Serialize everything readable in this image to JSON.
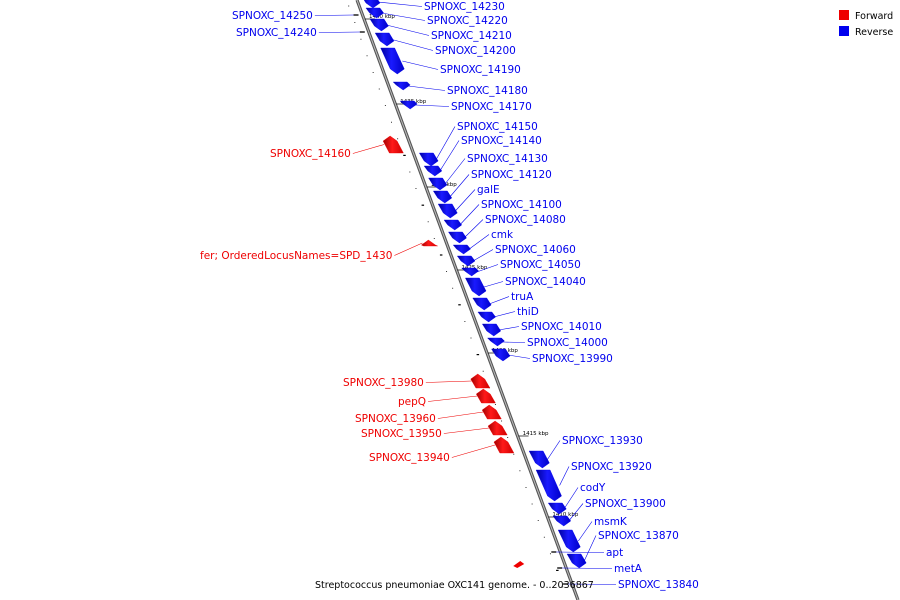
{
  "caption": "Streptococcus pneumoniae OXC141 genome. - 0..2036867",
  "legend": [
    {
      "name": "Forward",
      "color": "#ee0000"
    },
    {
      "name": "Reverse",
      "color": "#0000ee"
    }
  ],
  "colors": {
    "forward": "#ee0000",
    "reverse": "#0000ee",
    "backbone": "#808080"
  },
  "ticks": [
    "1440 kbp",
    "1435 kbp",
    "1430 kbp",
    "1425 kbp",
    "1420 kbp",
    "1415 kbp",
    "1410 kbp"
  ],
  "genes": [
    {
      "label": "SPNOXC_14250",
      "strand": "reverse",
      "feature": false
    },
    {
      "label": "SPNOXC_14240",
      "strand": "reverse",
      "feature": false
    },
    {
      "label": "SPNOXC_14230",
      "strand": "reverse",
      "feature": true
    },
    {
      "label": "SPNOXC_14220",
      "strand": "reverse",
      "feature": true
    },
    {
      "label": "SPNOXC_14210",
      "strand": "reverse",
      "feature": true
    },
    {
      "label": "SPNOXC_14200",
      "strand": "reverse",
      "feature": true
    },
    {
      "label": "SPNOXC_14190",
      "strand": "reverse",
      "feature": true
    },
    {
      "label": "SPNOXC_14180",
      "strand": "reverse",
      "feature": true
    },
    {
      "label": "SPNOXC_14170",
      "strand": "reverse",
      "feature": true
    },
    {
      "label": "SPNOXC_14160",
      "strand": "forward",
      "feature": true
    },
    {
      "label": "SPNOXC_14150",
      "strand": "reverse",
      "feature": true
    },
    {
      "label": "SPNOXC_14140",
      "strand": "reverse",
      "feature": true
    },
    {
      "label": "SPNOXC_14130",
      "strand": "reverse",
      "feature": true
    },
    {
      "label": "SPNOXC_14120",
      "strand": "reverse",
      "feature": true
    },
    {
      "label": "galE",
      "strand": "reverse",
      "feature": true
    },
    {
      "label": "SPNOXC_14100",
      "strand": "reverse",
      "feature": true
    },
    {
      "label": "SPNOXC_14080",
      "strand": "reverse",
      "feature": true
    },
    {
      "label": "cmk",
      "strand": "reverse",
      "feature": true
    },
    {
      "label": "fer; OrderedLocusNames=SPD_1430",
      "strand": "forward",
      "feature": true
    },
    {
      "label": "SPNOXC_14060",
      "strand": "reverse",
      "feature": true
    },
    {
      "label": "SPNOXC_14050",
      "strand": "reverse",
      "feature": true
    },
    {
      "label": "SPNOXC_14040",
      "strand": "reverse",
      "feature": true
    },
    {
      "label": "truA",
      "strand": "reverse",
      "feature": true
    },
    {
      "label": "thiD",
      "strand": "reverse",
      "feature": true
    },
    {
      "label": "SPNOXC_14010",
      "strand": "reverse",
      "feature": true
    },
    {
      "label": "SPNOXC_14000",
      "strand": "reverse",
      "feature": true
    },
    {
      "label": "SPNOXC_13990",
      "strand": "reverse",
      "feature": true
    },
    {
      "label": "SPNOXC_13980",
      "strand": "forward",
      "feature": true
    },
    {
      "label": "pepQ",
      "strand": "forward",
      "feature": true
    },
    {
      "label": "SPNOXC_13960",
      "strand": "forward",
      "feature": true
    },
    {
      "label": "SPNOXC_13950",
      "strand": "forward",
      "feature": true
    },
    {
      "label": "SPNOXC_13940",
      "strand": "forward",
      "feature": true
    },
    {
      "label": "SPNOXC_13930",
      "strand": "reverse",
      "feature": true
    },
    {
      "label": "SPNOXC_13920",
      "strand": "reverse",
      "feature": true
    },
    {
      "label": "codY",
      "strand": "reverse",
      "feature": true
    },
    {
      "label": "SPNOXC_13900",
      "strand": "reverse",
      "feature": true
    },
    {
      "label": "msmK",
      "strand": "reverse",
      "feature": true
    },
    {
      "label": "SPNOXC_13870",
      "strand": "reverse",
      "feature": true
    },
    {
      "label": "apt",
      "strand": "reverse",
      "feature": true
    },
    {
      "label": "metA",
      "strand": "reverse",
      "feature": true
    },
    {
      "label": "SPNOXC_13840",
      "strand": "reverse",
      "feature": true
    }
  ]
}
